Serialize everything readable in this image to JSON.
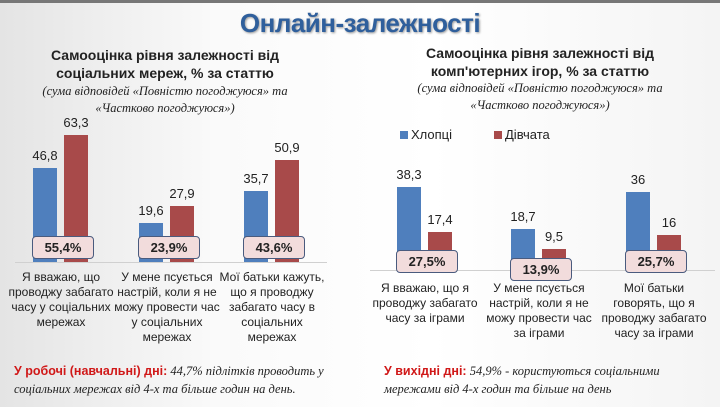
{
  "title": "Онлайн-залежності",
  "colors": {
    "boys": "#4f7fbd",
    "girls": "#a84a4a"
  },
  "chart_data": [
    {
      "type": "bar",
      "title": "Самооцінка рівня залежності від соціальних мереж, % за статтю",
      "subtitle": "(сума відповідей «Повністю погоджуюся» та «Частково погоджуюся»)",
      "categories": [
        "Я вважаю, що проводжу забагато часу у соціальних мережах",
        "У мене псується настрій, коли я не можу провести час у соціальних мережах",
        "Мої батьки кажуть, що я проводжу забагато часу в соціальних мережах"
      ],
      "series": [
        {
          "name": "Хлопці",
          "values": [
            46.8,
            19.6,
            35.7
          ],
          "labels": [
            "46,8",
            "19,6",
            "35,7"
          ]
        },
        {
          "name": "Дівчата",
          "values": [
            63.3,
            27.9,
            50.9
          ],
          "labels": [
            "63,3",
            "27,9",
            "50,9"
          ]
        }
      ],
      "totals": [
        "55,4%",
        "23,9%",
        "43,6%"
      ]
    },
    {
      "type": "bar",
      "title": "Самооцінка рівня залежності від комп'ютерних ігор, % за статтю",
      "subtitle": "(сума відповідей «Повністю погоджуюся» та «Частково погоджуюся»)",
      "legend": [
        "Хлопці",
        "Дівчата"
      ],
      "categories": [
        "Я вважаю, що я проводжу забагато часу за іграми",
        "У мене псується настрій, коли я не можу провести час за іграми",
        "Мої батьки говорять, що я проводжу забагато часу за іграми"
      ],
      "series": [
        {
          "name": "Хлопці",
          "values": [
            38.3,
            18.7,
            36
          ],
          "labels": [
            "38,3",
            "18,7",
            "36"
          ]
        },
        {
          "name": "Дівчата",
          "values": [
            17.4,
            9.5,
            16
          ],
          "labels": [
            "17,4",
            "9,5",
            "16"
          ]
        }
      ],
      "totals": [
        "27,5%",
        "13,9%",
        "25,7%"
      ]
    }
  ],
  "notes": [
    {
      "label": "У робочі (навчальні) дні:",
      "text": " 44,7% підлітків проводить у соціальних мережах  від 4-х  та більше годин на день."
    },
    {
      "label": "У вихідні дні:",
      "text": " 54,9% - користуються соціальними мережами від 4-х годин та більше на день"
    }
  ]
}
